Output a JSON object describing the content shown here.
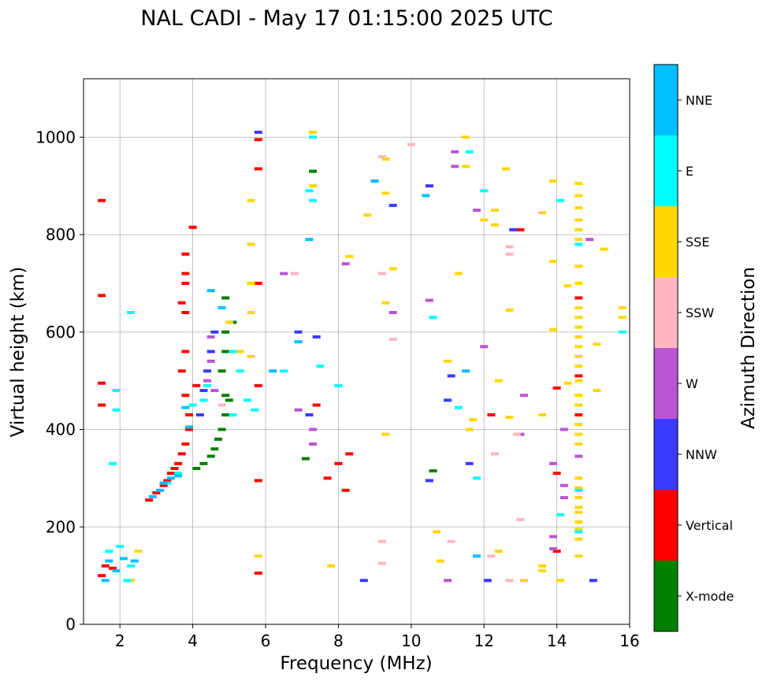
{
  "chart_data": {
    "type": "scatter",
    "title": "NAL CADI - May 17 01:15:00 2025 UTC",
    "xlabel": "Frequency (MHz)",
    "ylabel": "Virtual height (km)",
    "xlim": [
      1.0,
      16.0
    ],
    "ylim": [
      0,
      1120
    ],
    "xticks": [
      2,
      4,
      6,
      8,
      10,
      12,
      14,
      16
    ],
    "yticks": [
      0,
      200,
      400,
      600,
      800,
      1000
    ],
    "grid": true,
    "colorbar": {
      "label": "Azimuth Direction",
      "entries": [
        {
          "label": "X-mode",
          "color": "#008000"
        },
        {
          "label": "Vertical",
          "color": "#ff0000"
        },
        {
          "label": "NNW",
          "color": "#3a3aff"
        },
        {
          "label": "W",
          "color": "#ba55d3"
        },
        {
          "label": "SSW",
          "color": "#ffb6c1"
        },
        {
          "label": "SSE",
          "color": "#ffd700"
        },
        {
          "label": "E",
          "color": "#00ffff"
        },
        {
          "label": "NNE",
          "color": "#00bfff"
        }
      ]
    },
    "series": [
      {
        "name": "Vertical",
        "color": "#ff0000",
        "points": [
          [
            1.5,
            870
          ],
          [
            1.5,
            675
          ],
          [
            1.5,
            495
          ],
          [
            1.5,
            450
          ],
          [
            1.5,
            100
          ],
          [
            1.6,
            120
          ],
          [
            1.8,
            115
          ],
          [
            2.8,
            255
          ],
          [
            3.0,
            270
          ],
          [
            3.2,
            285
          ],
          [
            3.3,
            295
          ],
          [
            3.4,
            310
          ],
          [
            3.5,
            320
          ],
          [
            3.6,
            330
          ],
          [
            3.7,
            350
          ],
          [
            3.8,
            370
          ],
          [
            3.9,
            400
          ],
          [
            3.9,
            430
          ],
          [
            3.8,
            470
          ],
          [
            3.7,
            520
          ],
          [
            3.8,
            560
          ],
          [
            3.8,
            640
          ],
          [
            3.7,
            660
          ],
          [
            3.8,
            700
          ],
          [
            3.8,
            720
          ],
          [
            3.8,
            760
          ],
          [
            4.0,
            815
          ],
          [
            4.1,
            490
          ],
          [
            5.8,
            995
          ],
          [
            5.8,
            935
          ],
          [
            5.8,
            700
          ],
          [
            5.8,
            490
          ],
          [
            5.8,
            295
          ],
          [
            5.8,
            105
          ],
          [
            7.4,
            450
          ],
          [
            7.7,
            300
          ],
          [
            8.0,
            330
          ],
          [
            8.3,
            350
          ],
          [
            8.2,
            275
          ],
          [
            12.2,
            430
          ],
          [
            13.0,
            810
          ],
          [
            14.0,
            485
          ],
          [
            14.0,
            310
          ],
          [
            14.0,
            150
          ],
          [
            14.6,
            670
          ],
          [
            14.6,
            510
          ],
          [
            14.6,
            430
          ]
        ]
      },
      {
        "name": "X-mode",
        "color": "#008000",
        "points": [
          [
            4.1,
            320
          ],
          [
            4.3,
            330
          ],
          [
            4.5,
            345
          ],
          [
            4.6,
            360
          ],
          [
            4.7,
            380
          ],
          [
            4.8,
            400
          ],
          [
            4.9,
            430
          ],
          [
            4.9,
            470
          ],
          [
            5.0,
            460
          ],
          [
            4.8,
            520
          ],
          [
            4.9,
            560
          ],
          [
            4.9,
            600
          ],
          [
            5.1,
            620
          ],
          [
            4.9,
            670
          ],
          [
            7.3,
            930
          ],
          [
            7.1,
            340
          ],
          [
            10.6,
            315
          ]
        ]
      },
      {
        "name": "NNW",
        "color": "#3a3aff",
        "points": [
          [
            4.4,
            520
          ],
          [
            4.3,
            480
          ],
          [
            4.5,
            560
          ],
          [
            4.6,
            600
          ],
          [
            4.2,
            430
          ],
          [
            5.8,
            1010
          ],
          [
            7.2,
            430
          ],
          [
            7.4,
            590
          ],
          [
            6.9,
            600
          ],
          [
            9.5,
            860
          ],
          [
            10.5,
            900
          ],
          [
            10.5,
            295
          ],
          [
            11.0,
            460
          ],
          [
            11.1,
            510
          ],
          [
            8.7,
            90
          ],
          [
            12.1,
            90
          ],
          [
            15.0,
            90
          ],
          [
            12.8,
            810
          ],
          [
            11.6,
            330
          ]
        ]
      },
      {
        "name": "W",
        "color": "#ba55d3",
        "points": [
          [
            4.5,
            590
          ],
          [
            4.5,
            540
          ],
          [
            4.4,
            500
          ],
          [
            4.6,
            480
          ],
          [
            6.5,
            720
          ],
          [
            6.9,
            440
          ],
          [
            7.3,
            400
          ],
          [
            7.3,
            370
          ],
          [
            8.2,
            740
          ],
          [
            9.5,
            640
          ],
          [
            10.5,
            665
          ],
          [
            11.2,
            970
          ],
          [
            11.2,
            940
          ],
          [
            11.8,
            850
          ],
          [
            12.0,
            570
          ],
          [
            13.1,
            470
          ],
          [
            13.0,
            390
          ],
          [
            13.9,
            330
          ],
          [
            13.9,
            180
          ],
          [
            13.9,
            155
          ],
          [
            14.2,
            400
          ],
          [
            14.2,
            285
          ],
          [
            14.2,
            260
          ],
          [
            14.9,
            790
          ],
          [
            14.6,
            345
          ],
          [
            11.0,
            90
          ]
        ]
      },
      {
        "name": "SSW",
        "color": "#ffb6c1",
        "points": [
          [
            4.8,
            450
          ],
          [
            6.8,
            720
          ],
          [
            9.2,
            960
          ],
          [
            9.2,
            720
          ],
          [
            9.2,
            170
          ],
          [
            9.2,
            125
          ],
          [
            9.5,
            585
          ],
          [
            10.0,
            985
          ],
          [
            11.1,
            170
          ],
          [
            12.2,
            140
          ],
          [
            12.7,
            760
          ],
          [
            12.7,
            775
          ],
          [
            12.7,
            90
          ],
          [
            13.0,
            215
          ],
          [
            12.9,
            390
          ],
          [
            12.3,
            350
          ]
        ]
      },
      {
        "name": "SSE",
        "color": "#ffd700",
        "points": [
          [
            2.5,
            150
          ],
          [
            2.3,
            90
          ],
          [
            5.0,
            620
          ],
          [
            5.3,
            560
          ],
          [
            5.6,
            780
          ],
          [
            5.6,
            700
          ],
          [
            5.6,
            640
          ],
          [
            5.6,
            550
          ],
          [
            5.6,
            870
          ],
          [
            5.8,
            140
          ],
          [
            7.3,
            1010
          ],
          [
            7.3,
            900
          ],
          [
            7.8,
            120
          ],
          [
            8.3,
            755
          ],
          [
            8.8,
            840
          ],
          [
            9.3,
            955
          ],
          [
            9.3,
            885
          ],
          [
            9.5,
            730
          ],
          [
            9.3,
            660
          ],
          [
            9.3,
            390
          ],
          [
            10.7,
            190
          ],
          [
            10.8,
            130
          ],
          [
            11.0,
            540
          ],
          [
            11.3,
            720
          ],
          [
            11.5,
            940
          ],
          [
            11.5,
            1000
          ],
          [
            11.6,
            400
          ],
          [
            11.7,
            420
          ],
          [
            12.0,
            830
          ],
          [
            12.3,
            850
          ],
          [
            12.3,
            820
          ],
          [
            12.4,
            500
          ],
          [
            12.4,
            150
          ],
          [
            12.6,
            935
          ],
          [
            12.7,
            645
          ],
          [
            12.7,
            425
          ],
          [
            13.1,
            90
          ],
          [
            13.6,
            845
          ],
          [
            13.6,
            430
          ],
          [
            13.6,
            110
          ],
          [
            13.6,
            120
          ],
          [
            13.9,
            910
          ],
          [
            13.9,
            745
          ],
          [
            13.9,
            605
          ],
          [
            14.3,
            695
          ],
          [
            14.3,
            495
          ],
          [
            14.6,
            905
          ],
          [
            14.6,
            880
          ],
          [
            14.6,
            855
          ],
          [
            14.6,
            830
          ],
          [
            14.6,
            810
          ],
          [
            14.6,
            790
          ],
          [
            14.6,
            735
          ],
          [
            14.6,
            700
          ],
          [
            14.6,
            650
          ],
          [
            14.6,
            630
          ],
          [
            14.6,
            610
          ],
          [
            14.6,
            590
          ],
          [
            14.6,
            570
          ],
          [
            14.6,
            550
          ],
          [
            14.6,
            530
          ],
          [
            14.6,
            500
          ],
          [
            14.6,
            470
          ],
          [
            14.6,
            450
          ],
          [
            14.6,
            410
          ],
          [
            14.6,
            390
          ],
          [
            14.6,
            370
          ],
          [
            14.6,
            300
          ],
          [
            14.6,
            280
          ],
          [
            14.6,
            260
          ],
          [
            14.6,
            240
          ],
          [
            14.6,
            230
          ],
          [
            14.6,
            210
          ],
          [
            14.6,
            195
          ],
          [
            14.6,
            175
          ],
          [
            14.6,
            140
          ],
          [
            15.3,
            770
          ],
          [
            15.1,
            575
          ],
          [
            15.1,
            480
          ],
          [
            15.8,
            650
          ],
          [
            15.8,
            630
          ],
          [
            14.1,
            90
          ]
        ]
      },
      {
        "name": "E",
        "color": "#00ffff",
        "points": [
          [
            1.7,
            150
          ],
          [
            2.0,
            160
          ],
          [
            2.3,
            120
          ],
          [
            2.2,
            90
          ],
          [
            3.3,
            290
          ],
          [
            3.6,
            310
          ],
          [
            4.0,
            450
          ],
          [
            4.3,
            460
          ],
          [
            4.4,
            490
          ],
          [
            5.1,
            430
          ],
          [
            5.1,
            560
          ],
          [
            5.3,
            520
          ],
          [
            5.5,
            460
          ],
          [
            5.7,
            440
          ],
          [
            6.5,
            520
          ],
          [
            7.3,
            1000
          ],
          [
            7.2,
            890
          ],
          [
            7.3,
            870
          ],
          [
            7.5,
            530
          ],
          [
            8.0,
            490
          ],
          [
            9.0,
            910
          ],
          [
            10.6,
            630
          ],
          [
            10.6,
            630
          ],
          [
            11.3,
            445
          ],
          [
            11.6,
            970
          ],
          [
            11.8,
            300
          ],
          [
            12.0,
            890
          ],
          [
            14.1,
            870
          ],
          [
            14.1,
            225
          ],
          [
            14.6,
            780
          ],
          [
            14.6,
            275
          ],
          [
            14.6,
            190
          ],
          [
            15.8,
            600
          ],
          [
            1.8,
            330
          ],
          [
            1.9,
            480
          ],
          [
            1.9,
            440
          ],
          [
            2.3,
            640
          ]
        ]
      },
      {
        "name": "NNE",
        "color": "#00bfff",
        "points": [
          [
            1.6,
            90
          ],
          [
            1.7,
            130
          ],
          [
            1.9,
            110
          ],
          [
            2.1,
            135
          ],
          [
            2.4,
            130
          ],
          [
            2.9,
            262
          ],
          [
            3.1,
            275
          ],
          [
            3.2,
            290
          ],
          [
            3.4,
            300
          ],
          [
            3.6,
            305
          ],
          [
            3.9,
            405
          ],
          [
            3.8,
            445
          ],
          [
            4.5,
            685
          ],
          [
            4.8,
            650
          ],
          [
            6.2,
            520
          ],
          [
            6.9,
            580
          ],
          [
            7.2,
            790
          ],
          [
            9.0,
            910
          ],
          [
            10.4,
            880
          ],
          [
            11.5,
            520
          ],
          [
            11.8,
            140
          ]
        ]
      }
    ]
  }
}
